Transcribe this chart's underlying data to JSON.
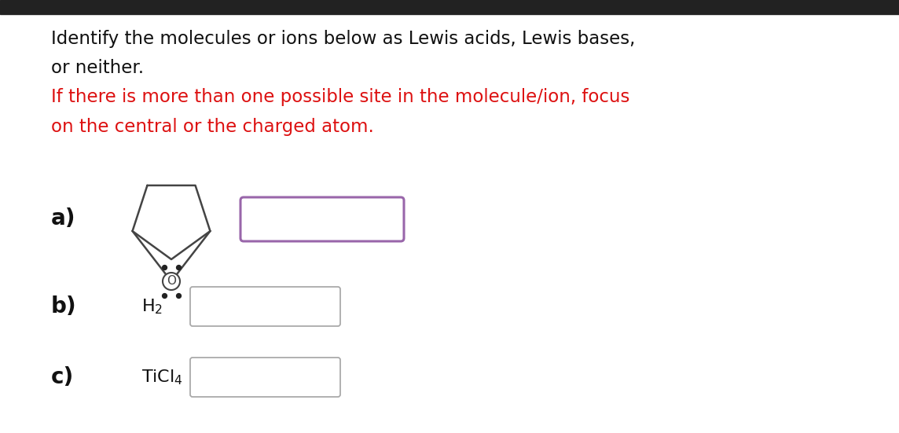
{
  "title_black": "Identify the molecules or ions below as Lewis acids, Lewis bases,",
  "title_black2": "or neither.",
  "title_red": "If there is more than one possible site in the molecule/ion, focus",
  "title_red2": "on the central or the charged atom.",
  "title_fontsize": 16.5,
  "label_fontsize": 20,
  "bg_color": "#ffffff",
  "top_bar_color": "#222222",
  "text_black": "#111111",
  "text_red": "#dd1111",
  "dropdown_color_a": "#9966aa",
  "dropdown_color_bc": "#aaaaaa",
  "mol_color": "#444444",
  "dot_color": "#222222"
}
